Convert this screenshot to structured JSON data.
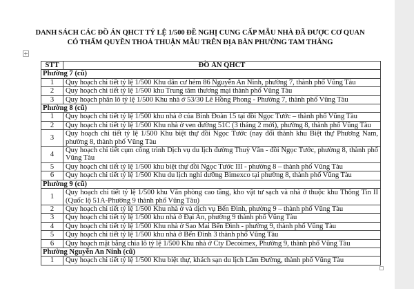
{
  "title": {
    "line1": "DANH SÁCH CÁC ĐỒ ÁN QHCT TỶ LỆ 1/500 ĐỀ NGHỊ CUNG CẤP MẪU NHÀ ĐÃ ĐƯỢC CƠ QUAN",
    "line2": "CÓ THẨM QUYỀN THOẢ THUẬN MẪU TRÊN ĐỊA BÀN PHƯỜNG TAM THẮNG"
  },
  "table": {
    "headers": [
      "STT",
      "ĐỒ ÁN QHCT"
    ],
    "groups": [
      {
        "name": "Phường 7 (cũ)",
        "rows": [
          {
            "stt": "1",
            "text": "Quy hoạch chi tiết tỷ lệ 1/500 Khu dân cư hẻm 86 Nguyễn An Ninh, phường 7, thành phố Vũng Tàu"
          },
          {
            "stt": "2",
            "text": "Quy hoạch chi tiết tỷ lệ 1/500 khu Trung tâm thương mại thành phố Vũng Tàu"
          },
          {
            "stt": "3",
            "text": "Quy hoạch phân lô tỷ lệ 1/500 Khu nhà ở 53/30 Lê Hồng Phong - Phường 7, thành phố Vũng Tàu"
          }
        ]
      },
      {
        "name": "Phường 8 (cũ)",
        "rows": [
          {
            "stt": "1",
            "text": "Quy hoạch chi tiết tỷ lệ 1/500 khu nhà ở của Binh Đoàn 15 tại đồi Ngọc Tước – thành phố Vũng Tàu"
          },
          {
            "stt": "2",
            "text": "Quy hoạch chi tiết tỷ lệ 1/500 Khu nhà ở ven đường 51C (3 tháng 2 mới), phường 8, thành phố Vũng Tàu"
          },
          {
            "stt": "3",
            "text": "Quy hoạch chi tiết tỷ lệ 1/500 Khu biệt thự đồi Ngọc Tước (nay đổi thành khu Biệt thự Phương Nam, phường 8, thành phố Vũng Tàu"
          },
          {
            "stt": "4",
            "text": "Quy hoạch chi tiết cụm công trình Dịch vụ du lịch đường Thuỳ Vân - đồi Ngọc Tước, phường 8, thành phố Vũng Tàu"
          },
          {
            "stt": "5",
            "text": "Quy hoạch chi tiết tỷ lệ 1/500 khu biệt thự đồi Ngọc Tước III - phường 8 – thành phố Vũng Tàu"
          },
          {
            "stt": "6",
            "text": "Quy hoạch chi tiết tỷ lệ 1/500 Khu du lịch nghỉ dưỡng Bimexco tại phường 8, thành phố Vũng Tàu"
          }
        ]
      },
      {
        "name": "Phường 9 (cũ)",
        "rows": [
          {
            "stt": "1",
            "text": "Quy hoạch chi tiết tỷ lệ 1/500 khu Văn phòng cao tầng, kho vật tư sạch và nhà ở thuộc khu Thông Tin II (Quốc lộ 51A-Phường 9 thành phố Vũng Tàu)"
          },
          {
            "stt": "2",
            "text": "Quy hoạch chi tiết tỷ lệ 1/500 Khu nhà ở và dịch vụ Bến Đình, phường 9 – thành phố Vũng Tàu"
          },
          {
            "stt": "3",
            "text": "Quy hoạch chi tiết tỷ lệ 1/500 khu nhà ở Đại An, phường 9 thành phố Vũng Tàu"
          },
          {
            "stt": "4",
            "text": "Quy hoạch chi tiết tỷ lệ 1/500 Khu nhà ở Sao Mai Bến Đình - phường 9, thành phố Vũng Tàu"
          },
          {
            "stt": "5",
            "text": "Quy hoạch chi tiết tỷ lệ 1/500 khu nhà ở Bến Đình 3 thành phố Vũng Tàu"
          },
          {
            "stt": "6",
            "text": "Quy hoạch mặt bằng chia lô tỷ lệ 1/500 Khu nhà ở Cty Decoimex, Phường 9, thành phố Vũng Tàu"
          }
        ]
      },
      {
        "name": "Phường Nguyễn An Ninh (cũ)",
        "rows": [
          {
            "stt": "1",
            "text": "Quy hoạch chi tiết tỷ lệ 1/500 Khu biệt thự, khách sạn du lịch Lâm Đường, thành phố Vũng Tàu"
          }
        ]
      }
    ]
  }
}
